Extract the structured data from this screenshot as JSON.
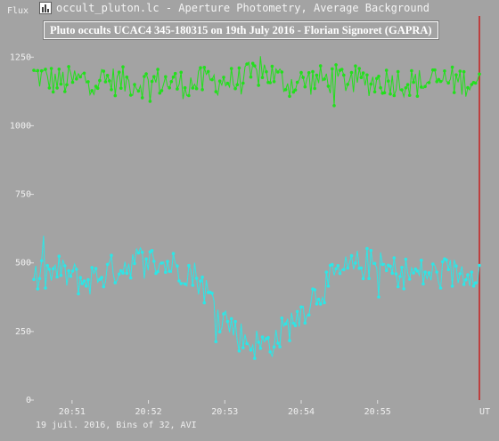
{
  "window": {
    "title": "occult_pluton.lc - Aperture Photometry, Average Background"
  },
  "footer": {
    "status": "19 juil. 2016, Bins of 32, AVI"
  },
  "chart_data": {
    "type": "line",
    "title": "Pluto occults UCAC4 345-180315 on 19th July 2016 - Florian Signoret (GAPRA)",
    "ylabel": "Flux",
    "xlabel": "UT",
    "ylim": [
      0,
      1400
    ],
    "xlim": [
      "20:50:30",
      "20:56:20"
    ],
    "y_ticks": [
      0,
      250,
      500,
      750,
      1000,
      1250
    ],
    "y_tick_labels": [
      "0",
      "250",
      "500",
      "750",
      "1000",
      "1250"
    ],
    "x_ticks": [
      "20:51",
      "20:52",
      "20:53",
      "20:54",
      "20:55"
    ],
    "marker_time": "20:56:20",
    "colors": {
      "comparison": "#22e01c",
      "target": "#2de6e6",
      "marker": "#c81e1e",
      "title_border": "#ffffff"
    },
    "series": [
      {
        "color": "#22e01c",
        "x": [
          "20:50:30",
          "20:50:50",
          "20:51:10",
          "20:51:30",
          "20:51:50",
          "20:52:10",
          "20:52:30",
          "20:52:50",
          "20:53:10",
          "20:53:30",
          "20:53:50",
          "20:54:10",
          "20:54:30",
          "20:54:50",
          "20:55:10",
          "20:55:30",
          "20:55:50",
          "20:56:10",
          "20:56:20"
        ],
        "values": [
          1185,
          1160,
          1170,
          1165,
          1155,
          1160,
          1150,
          1165,
          1160,
          1200,
          1155,
          1165,
          1170,
          1160,
          1165,
          1155,
          1165,
          1160,
          1170
        ]
      },
      {
        "color": "#2de6e6",
        "x": [
          "20:50:30",
          "20:50:50",
          "20:51:10",
          "20:51:30",
          "20:51:50",
          "20:52:10",
          "20:52:30",
          "20:52:40",
          "20:52:50",
          "20:53:00",
          "20:53:10",
          "20:53:20",
          "20:53:30",
          "20:53:40",
          "20:53:50",
          "20:54:00",
          "20:54:10",
          "20:54:20",
          "20:54:30",
          "20:54:50",
          "20:55:10",
          "20:55:30",
          "20:55:50",
          "20:56:10",
          "20:56:20"
        ],
        "values": [
          440,
          470,
          430,
          470,
          510,
          500,
          475,
          440,
          360,
          300,
          240,
          210,
          200,
          220,
          270,
          320,
          380,
          420,
          460,
          500,
          470,
          460,
          455,
          470,
          480
        ]
      }
    ]
  }
}
